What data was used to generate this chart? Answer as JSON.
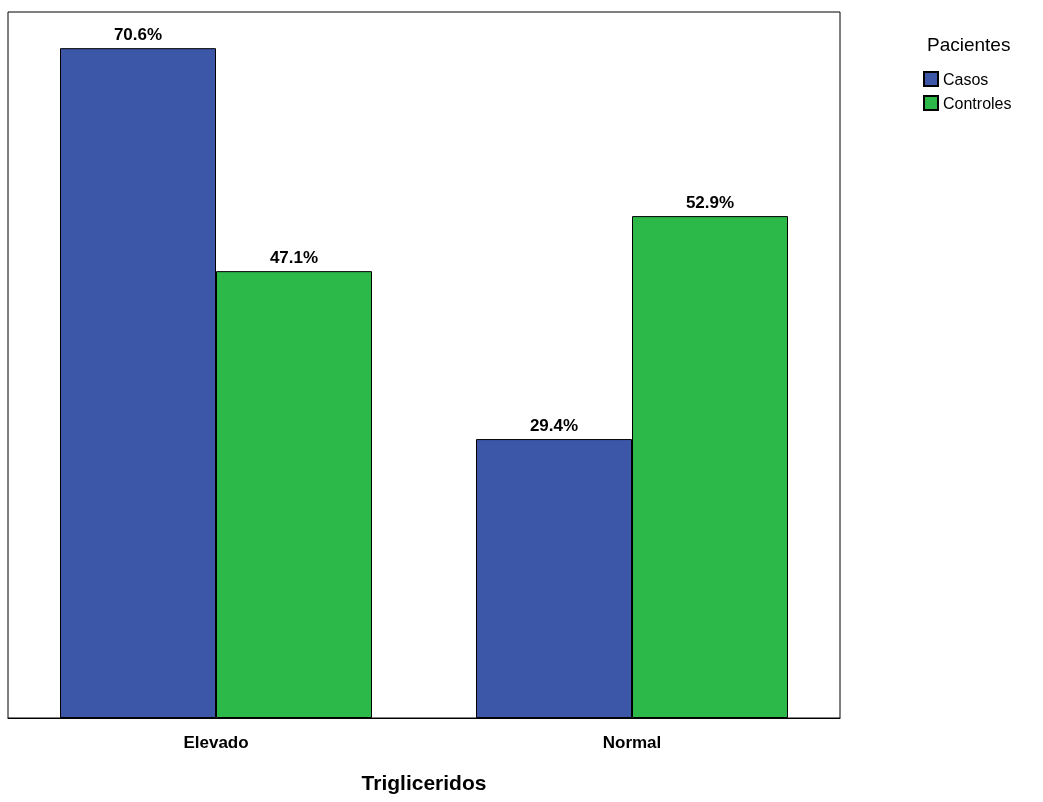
{
  "chart_data": {
    "type": "bar",
    "xlabel": "Trigliceridos",
    "legend_title": "Pacientes",
    "categories": [
      "Elevado",
      "Normal"
    ],
    "series": [
      {
        "name": "Casos",
        "color": "#3c56a8",
        "values": [
          70.6,
          29.4
        ],
        "value_labels": [
          "70.6%",
          "29.4%"
        ]
      },
      {
        "name": "Controles",
        "color": "#2db84a",
        "values": [
          47.1,
          52.9
        ],
        "value_labels": [
          "47.1%",
          "52.9%"
        ]
      }
    ],
    "tick_labels": "x",
    "legend": "top right"
  }
}
